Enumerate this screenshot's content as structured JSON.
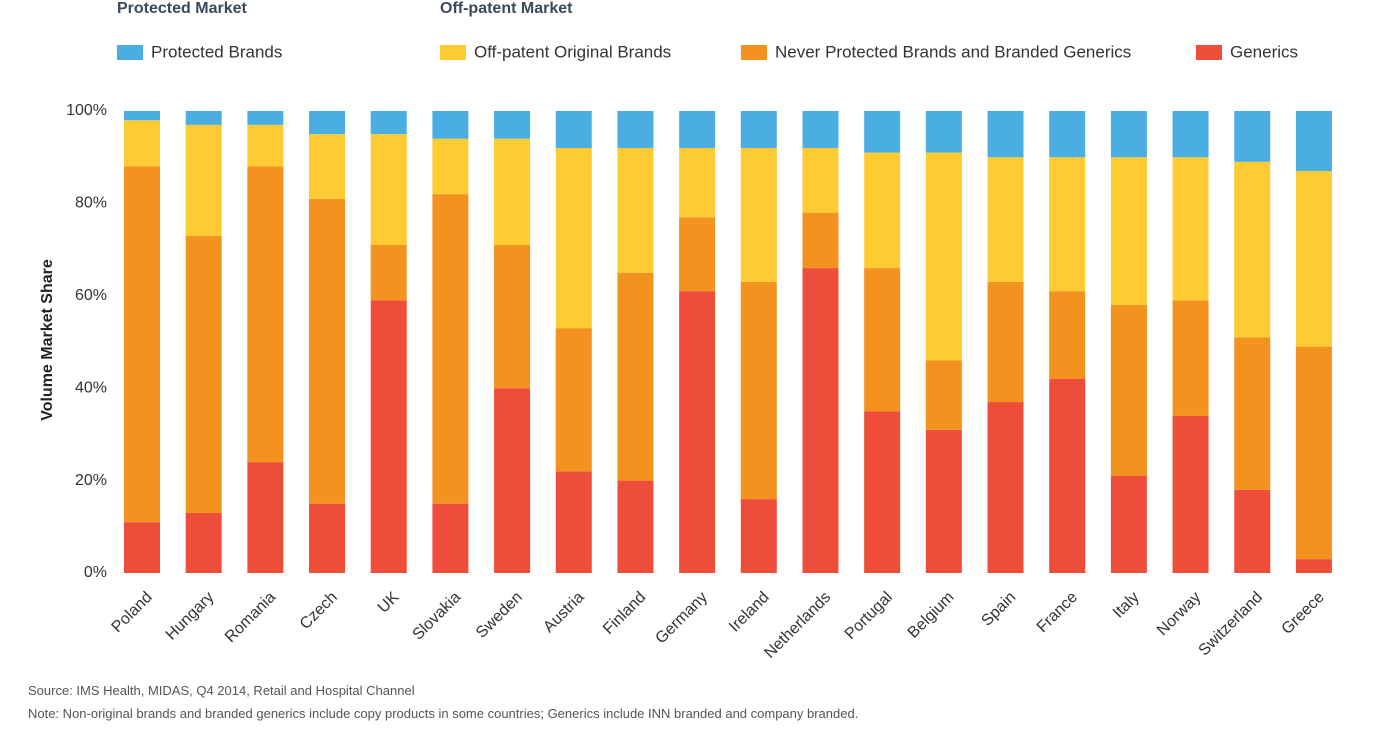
{
  "chart_data": {
    "type": "stacked_bar",
    "legend_groups": [
      "Protected Market",
      "Off-patent Market"
    ],
    "y_label": "Volume Market Share",
    "categories": [
      "Poland",
      "Hungary",
      "Romania",
      "Czech",
      "UK",
      "Slovakia",
      "Sweden",
      "Austria",
      "Finland",
      "Germany",
      "Ireland",
      "Netherlands",
      "Portugal",
      "Belgium",
      "Spain",
      "France",
      "Italy",
      "Norway",
      "Switzerland",
      "Greece"
    ],
    "series": [
      {
        "name": "Protected Brands",
        "color": "#4aaee3",
        "values": [
          2,
          3,
          3,
          5,
          5,
          6,
          6,
          8,
          8,
          8,
          8,
          8,
          9,
          9,
          10,
          10,
          10,
          10,
          11,
          13
        ]
      },
      {
        "name": "Off-patent Original Brands",
        "color": "#fecb33",
        "values": [
          10,
          24,
          9,
          14,
          24,
          12,
          23,
          39,
          27,
          15,
          29,
          14,
          25,
          45,
          27,
          29,
          32,
          31,
          38,
          38
        ]
      },
      {
        "name": "Never Protected Brands and Branded Generics",
        "color": "#f3921f",
        "values": [
          77,
          60,
          64,
          66,
          12,
          67,
          31,
          31,
          45,
          16,
          47,
          12,
          31,
          15,
          26,
          19,
          37,
          25,
          33,
          46
        ]
      },
      {
        "name": "Generics",
        "color": "#ee4d3a",
        "values": [
          11,
          13,
          24,
          15,
          59,
          15,
          40,
          22,
          20,
          61,
          16,
          66,
          35,
          31,
          37,
          42,
          21,
          34,
          18,
          3
        ]
      }
    ],
    "ylim": [
      0,
      100
    ],
    "yticks": [
      {
        "value": 0,
        "label": "0%"
      },
      {
        "value": 20,
        "label": "20%"
      },
      {
        "value": 40,
        "label": "40%"
      },
      {
        "value": 60,
        "label": "60%"
      },
      {
        "value": 80,
        "label": "80%"
      },
      {
        "value": 100,
        "label": "100%"
      }
    ],
    "source": "Source: IMS Health, MIDAS, Q4 2014, Retail and Hospital Channel",
    "note": "Note: Non-original brands and branded generics include copy products in some countries; Generics include INN branded  and company branded."
  }
}
